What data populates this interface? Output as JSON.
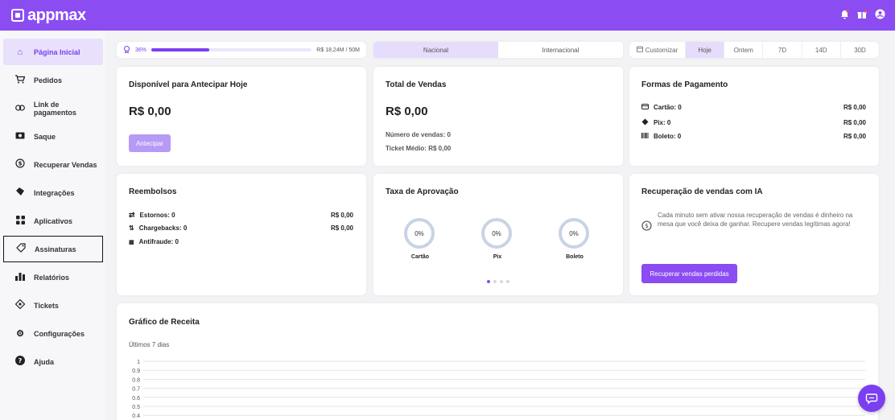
{
  "brand": {
    "name": "appmax",
    "color": "#8b4cf2"
  },
  "topbar_icons": [
    "bell-icon",
    "gift-icon",
    "user-account-icon"
  ],
  "sidebar": {
    "items": [
      {
        "label": "Página Inicial",
        "icon": "home-icon",
        "active": true
      },
      {
        "label": "Pedidos",
        "icon": "cart-icon"
      },
      {
        "label": "Link de pagamentos",
        "icon": "link-icon"
      },
      {
        "label": "Saque",
        "icon": "cash-icon"
      },
      {
        "label": "Recuperar Vendas",
        "icon": "recover-icon"
      },
      {
        "label": "Integrações",
        "icon": "puzzle-icon"
      },
      {
        "label": "Aplicativos",
        "icon": "apps-grid-icon"
      },
      {
        "label": "Assinaturas",
        "icon": "tag-icon",
        "outlined": true
      },
      {
        "label": "Relatórios",
        "icon": "bar-chart-icon"
      },
      {
        "label": "Tickets",
        "icon": "ticket-icon"
      },
      {
        "label": "Configurações",
        "icon": "gear-icon"
      },
      {
        "label": "Ajuda",
        "icon": "help-icon"
      }
    ]
  },
  "goal": {
    "percent": "36%",
    "progress": 0.36,
    "value": "R$ 18,24M / 50M"
  },
  "region_tabs": {
    "nacional": "Nacional",
    "internacional": "Internacional",
    "selected": "Nacional"
  },
  "period": {
    "customize": "Customizar",
    "options": [
      "Hoje",
      "Ontem",
      "7D",
      "14D",
      "30D"
    ],
    "selected": "Hoje"
  },
  "advance_card": {
    "title": "Disponível para Antecipar Hoje",
    "amount": "R$ 0,00",
    "button": "Antecipar"
  },
  "sales_card": {
    "title": "Total de Vendas",
    "amount": "R$ 0,00",
    "count": "Número de vendas: 0",
    "ticket": "Ticket Médio: R$ 0,00"
  },
  "payment_card": {
    "title": "Formas de Pagamento",
    "rows": [
      {
        "label": "Cartão: 0",
        "value": "R$ 0,00",
        "icon": "card-icon"
      },
      {
        "label": "Pix: 0",
        "value": "R$ 0,00",
        "icon": "pix-icon"
      },
      {
        "label": "Boleto: 0",
        "value": "R$ 0,00",
        "icon": "barcode-icon"
      }
    ]
  },
  "refunds_card": {
    "title": "Reembolsos",
    "rows": [
      {
        "label": "Estornos: 0",
        "value": "R$ 0,00",
        "icon": "swap-icon"
      },
      {
        "label": "Chargebacks: 0",
        "value": "R$ 0,00",
        "icon": "chargeback-icon"
      },
      {
        "label": "Antifraude: 0",
        "value": "",
        "icon": "antifraud-icon"
      }
    ]
  },
  "approval_card": {
    "title": "Taxa de Aprovação",
    "items": [
      {
        "value": "0%",
        "label": "Cartão"
      },
      {
        "value": "0%",
        "label": "Pix"
      },
      {
        "value": "0%",
        "label": "Boleto"
      }
    ]
  },
  "ai_card": {
    "title": "Recuperação de vendas com IA",
    "text": "Cada minuto sem ativar nossa recuperação de vendas é dinheiro na mesa que você deixa de ganhar. Recupere vendas legítimas agora!",
    "button": "Recuperar vendas perdidas"
  },
  "revenue_chart": {
    "title": "Gráfico de Receita",
    "subtitle": "Últimos 7 dias"
  },
  "chart_data": {
    "type": "line",
    "series": [],
    "yticks": [
      "1",
      "0.9",
      "0.8",
      "0.7",
      "0.6",
      "0.5",
      "0.4"
    ],
    "ylim": [
      0,
      1
    ],
    "grid": true
  }
}
